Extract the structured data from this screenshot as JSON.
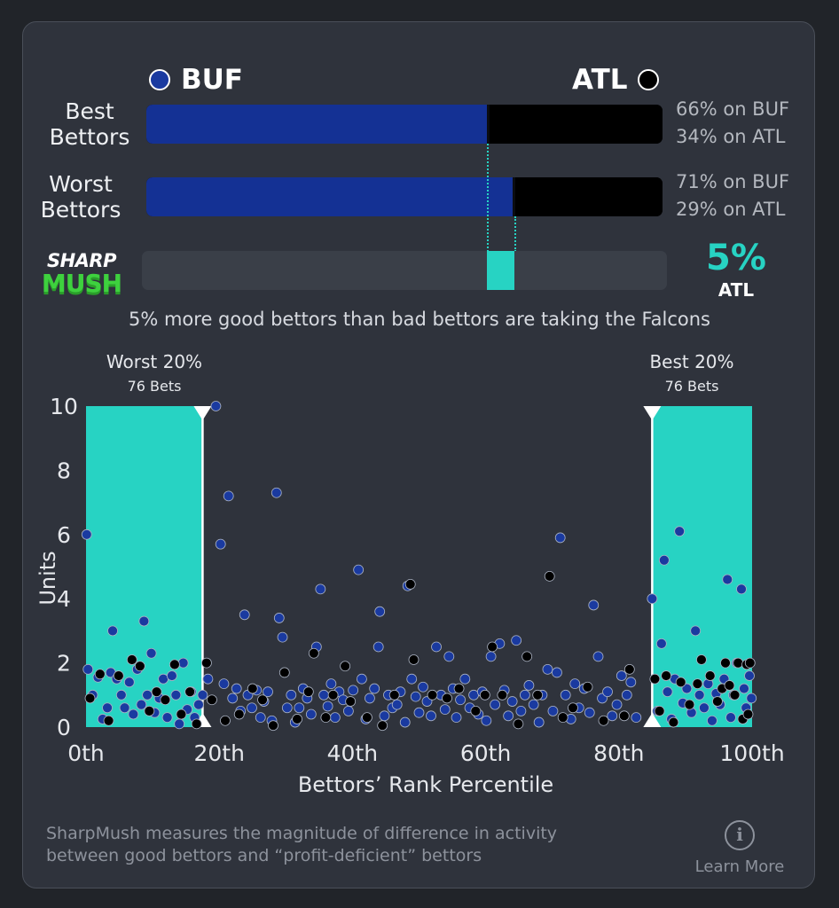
{
  "teams": {
    "home": {
      "abbr": "BUF",
      "color": "#143194"
    },
    "away": {
      "abbr": "ATL",
      "color": "#000000"
    }
  },
  "best_bettors": {
    "label": "Best Bettors",
    "buf_pct": 66,
    "atl_pct": 34,
    "buf_text": "66% on BUF",
    "atl_text": "34% on ATL"
  },
  "worst_bettors": {
    "label": "Worst Bettors",
    "buf_pct": 71,
    "atl_pct": 29,
    "buf_text": "71% on BUF",
    "atl_text": "29% on ATL"
  },
  "sharpmush": {
    "logo_line1": "SHARP",
    "logo_line2": "MUSH",
    "value_text": "5%",
    "team": "ATL",
    "value": 5,
    "accent": "#27d3c3"
  },
  "summary": "5% more good bettors than bad bettors are taking the Falcons",
  "chart_data": {
    "type": "scatter",
    "xlabel": "Bettors’ Rank Percentile",
    "ylabel": "Units",
    "xlim": [
      0,
      100
    ],
    "ylim": [
      0,
      10
    ],
    "x_ticks": [
      0,
      20,
      40,
      60,
      80,
      100
    ],
    "x_tick_labels": [
      "0th",
      "20th",
      "40th",
      "60th",
      "80th",
      "100th"
    ],
    "y_ticks": [
      0,
      2,
      4,
      6,
      8,
      10
    ],
    "y_tick_labels": [
      "0",
      "2",
      "4",
      "6",
      "8",
      "10"
    ],
    "regions": [
      {
        "title": "Worst 20%",
        "subtitle": "76 Bets",
        "x_start": 0,
        "x_end": 17.5
      },
      {
        "title": "Best 20%",
        "subtitle": "76 Bets",
        "x_start": 85,
        "x_end": 100
      }
    ],
    "series": [
      {
        "name": "BUF",
        "color": "#1a3aa0",
        "points": [
          [
            0.1,
            6.0
          ],
          [
            0.3,
            1.8
          ],
          [
            1,
            1.0
          ],
          [
            1.8,
            1.55
          ],
          [
            2.5,
            0.25
          ],
          [
            3.2,
            0.6
          ],
          [
            3.7,
            1.7
          ],
          [
            4,
            3.0
          ],
          [
            4.6,
            1.5
          ],
          [
            5.3,
            1.0
          ],
          [
            5.8,
            0.6
          ],
          [
            6.5,
            1.4
          ],
          [
            7.1,
            0.4
          ],
          [
            7.7,
            1.8
          ],
          [
            8.3,
            0.7
          ],
          [
            8.7,
            3.3
          ],
          [
            9.2,
            1.0
          ],
          [
            9.8,
            2.3
          ],
          [
            10.3,
            0.45
          ],
          [
            11,
            0.9
          ],
          [
            11.6,
            1.5
          ],
          [
            12.2,
            0.3
          ],
          [
            12.9,
            1.6
          ],
          [
            13.5,
            1.0
          ],
          [
            14,
            0.1
          ],
          [
            14.6,
            2.0
          ],
          [
            15.2,
            0.55
          ],
          [
            15.8,
            1.1
          ],
          [
            16.3,
            0.3
          ],
          [
            16.9,
            0.7
          ],
          [
            17.5,
            1.0
          ],
          [
            18.3,
            1.5
          ],
          [
            19.5,
            10.0
          ],
          [
            20.2,
            5.7
          ],
          [
            20.7,
            1.35
          ],
          [
            21.4,
            7.2
          ],
          [
            22,
            0.9
          ],
          [
            22.6,
            1.2
          ],
          [
            23.2,
            0.5
          ],
          [
            23.8,
            3.5
          ],
          [
            24.3,
            1.0
          ],
          [
            24.9,
            0.6
          ],
          [
            25.6,
            1.15
          ],
          [
            26.2,
            0.3
          ],
          [
            26.7,
            0.8
          ],
          [
            27.3,
            1.1
          ],
          [
            27.9,
            0.2
          ],
          [
            28.6,
            7.3
          ],
          [
            29,
            3.4
          ],
          [
            29.5,
            2.8
          ],
          [
            30.2,
            0.6
          ],
          [
            30.8,
            1.0
          ],
          [
            31.4,
            0.15
          ],
          [
            32,
            0.6
          ],
          [
            32.6,
            1.2
          ],
          [
            33.2,
            0.9
          ],
          [
            33.8,
            0.4
          ],
          [
            34.6,
            2.5
          ],
          [
            35.2,
            4.3
          ],
          [
            35.7,
            1.0
          ],
          [
            36.3,
            0.65
          ],
          [
            36.8,
            1.35
          ],
          [
            37.4,
            0.3
          ],
          [
            38,
            1.1
          ],
          [
            38.6,
            0.85
          ],
          [
            39.4,
            0.5
          ],
          [
            40.1,
            1.15
          ],
          [
            40.9,
            4.9
          ],
          [
            41.4,
            1.5
          ],
          [
            42,
            0.25
          ],
          [
            42.6,
            0.9
          ],
          [
            43.3,
            1.2
          ],
          [
            43.9,
            2.5
          ],
          [
            44.1,
            3.6
          ],
          [
            44.8,
            0.35
          ],
          [
            45.4,
            1.0
          ],
          [
            46,
            0.6
          ],
          [
            46.7,
            0.7
          ],
          [
            47.2,
            1.1
          ],
          [
            47.9,
            0.15
          ],
          [
            48.3,
            4.4
          ],
          [
            48.9,
            1.5
          ],
          [
            49.5,
            0.95
          ],
          [
            50,
            0.45
          ],
          [
            50.6,
            1.25
          ],
          [
            51.2,
            0.8
          ],
          [
            51.8,
            0.35
          ],
          [
            52.6,
            2.5
          ],
          [
            53.3,
            1.0
          ],
          [
            53.9,
            0.55
          ],
          [
            54.5,
            2.2
          ],
          [
            55.1,
            1.2
          ],
          [
            55.6,
            0.3
          ],
          [
            56.2,
            0.85
          ],
          [
            56.9,
            1.5
          ],
          [
            57.6,
            0.6
          ],
          [
            58.2,
            1.0
          ],
          [
            58.9,
            0.4
          ],
          [
            59.5,
            1.1
          ],
          [
            60.1,
            0.2
          ],
          [
            60.8,
            2.2
          ],
          [
            61.4,
            0.7
          ],
          [
            62.1,
            2.6
          ],
          [
            62.8,
            1.15
          ],
          [
            63.4,
            0.35
          ],
          [
            64,
            0.8
          ],
          [
            64.6,
            2.7
          ],
          [
            65.3,
            0.5
          ],
          [
            65.9,
            1.0
          ],
          [
            66.5,
            1.3
          ],
          [
            67.2,
            0.7
          ],
          [
            68,
            0.15
          ],
          [
            68.5,
            1.0
          ],
          [
            69.3,
            1.8
          ],
          [
            70.1,
            0.5
          ],
          [
            70.7,
            1.7
          ],
          [
            71.2,
            5.9
          ],
          [
            72,
            1.0
          ],
          [
            72.8,
            0.25
          ],
          [
            73.4,
            1.35
          ],
          [
            74,
            0.6
          ],
          [
            74.8,
            1.2
          ],
          [
            75.6,
            0.45
          ],
          [
            76.2,
            3.8
          ],
          [
            76.9,
            2.2
          ],
          [
            77.5,
            0.9
          ],
          [
            78.3,
            1.1
          ],
          [
            79,
            0.35
          ],
          [
            79.7,
            0.7
          ],
          [
            80.4,
            1.6
          ],
          [
            81.2,
            1.0
          ],
          [
            81.8,
            1.4
          ],
          [
            82.6,
            0.3
          ],
          [
            85,
            4.0
          ],
          [
            85.8,
            0.5
          ],
          [
            86.4,
            2.6
          ],
          [
            86.8,
            5.2
          ],
          [
            87.3,
            1.1
          ],
          [
            87.9,
            0.25
          ],
          [
            88.4,
            1.5
          ],
          [
            89.1,
            6.1
          ],
          [
            89.6,
            0.75
          ],
          [
            90.2,
            1.2
          ],
          [
            90.9,
            0.45
          ],
          [
            91.5,
            3.0
          ],
          [
            92.1,
            1.0
          ],
          [
            92.8,
            0.6
          ],
          [
            93.4,
            1.35
          ],
          [
            94,
            0.2
          ],
          [
            94.6,
            1.05
          ],
          [
            95.2,
            0.7
          ],
          [
            95.8,
            1.5
          ],
          [
            96.3,
            4.6
          ],
          [
            96.8,
            0.3
          ],
          [
            97.2,
            1.0
          ],
          [
            97.7,
            2.0
          ],
          [
            98.4,
            4.3
          ],
          [
            98.8,
            1.2
          ],
          [
            99.1,
            0.6
          ],
          [
            99.6,
            1.6
          ],
          [
            99.9,
            0.9
          ]
        ]
      },
      {
        "name": "ATL",
        "color": "#000000",
        "points": [
          [
            0.6,
            0.9
          ],
          [
            2.1,
            1.65
          ],
          [
            3.4,
            0.2
          ],
          [
            4.9,
            1.6
          ],
          [
            6.9,
            2.1
          ],
          [
            8.1,
            1.9
          ],
          [
            9.5,
            0.5
          ],
          [
            10.6,
            1.1
          ],
          [
            11.9,
            0.85
          ],
          [
            13.3,
            1.95
          ],
          [
            14.3,
            0.4
          ],
          [
            15.6,
            1.1
          ],
          [
            16.6,
            0.1
          ],
          [
            18.1,
            2.0
          ],
          [
            18.9,
            0.85
          ],
          [
            20.9,
            0.2
          ],
          [
            23,
            0.4
          ],
          [
            25,
            1.2
          ],
          [
            26.5,
            0.85
          ],
          [
            28.1,
            0.05
          ],
          [
            29.8,
            1.7
          ],
          [
            31.7,
            0.25
          ],
          [
            33.4,
            1.1
          ],
          [
            34.2,
            2.3
          ],
          [
            36,
            0.3
          ],
          [
            37.1,
            1.0
          ],
          [
            38.9,
            1.9
          ],
          [
            39.7,
            0.8
          ],
          [
            42.2,
            0.3
          ],
          [
            44.5,
            0.05
          ],
          [
            46.3,
            1.0
          ],
          [
            48.7,
            4.45
          ],
          [
            49.2,
            2.1
          ],
          [
            52,
            1.0
          ],
          [
            54.2,
            0.9
          ],
          [
            56,
            1.2
          ],
          [
            58.5,
            0.5
          ],
          [
            59.9,
            1.0
          ],
          [
            61,
            2.5
          ],
          [
            62.5,
            1.0
          ],
          [
            64.9,
            0.1
          ],
          [
            66.2,
            2.2
          ],
          [
            67.8,
            1.0
          ],
          [
            69.6,
            4.7
          ],
          [
            71.6,
            0.3
          ],
          [
            73.1,
            0.6
          ],
          [
            75.3,
            1.25
          ],
          [
            77.7,
            0.2
          ],
          [
            80.8,
            0.35
          ],
          [
            81.6,
            1.8
          ],
          [
            85.4,
            1.5
          ],
          [
            86.1,
            0.5
          ],
          [
            87.1,
            1.6
          ],
          [
            88.2,
            0.15
          ],
          [
            89.3,
            1.4
          ],
          [
            90.6,
            0.7
          ],
          [
            91.8,
            1.35
          ],
          [
            92.4,
            2.1
          ],
          [
            93.7,
            1.6
          ],
          [
            94.8,
            0.8
          ],
          [
            95.5,
            1.2
          ],
          [
            96,
            2.0
          ],
          [
            96.6,
            1.3
          ],
          [
            97.4,
            1.0
          ],
          [
            97.9,
            2.0
          ],
          [
            98.6,
            0.25
          ],
          [
            99.2,
            1.95
          ],
          [
            99.7,
            2.0
          ],
          [
            99.4,
            0.4
          ]
        ]
      }
    ]
  },
  "footer": {
    "text_line1": "SharpMush measures the magnitude of difference in activity",
    "text_line2": "between good bettors and “profit-deficient” bettors",
    "learn_more": "Learn More"
  }
}
